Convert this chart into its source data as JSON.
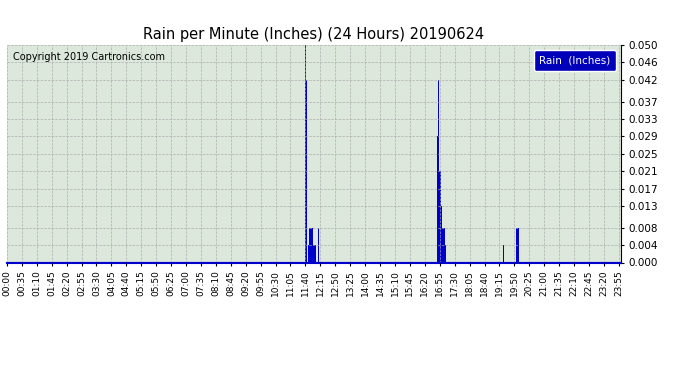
{
  "title": "Rain per Minute (Inches) (24 Hours) 20190624",
  "copyright": "Copyright 2019 Cartronics.com",
  "legend_label": "Rain  (Inches)",
  "legend_bg": "#0000bb",
  "legend_fg": "#ffffff",
  "bar_color": "#0000cc",
  "bg_color": "#ffffff",
  "plot_bg": "#dce8dc",
  "grid_color": "#aaaaaa",
  "axis_line_color": "#0000cc",
  "ylim": [
    0.0,
    0.05
  ],
  "yticks": [
    0.0,
    0.004,
    0.008,
    0.013,
    0.017,
    0.021,
    0.025,
    0.029,
    0.033,
    0.037,
    0.042,
    0.046,
    0.05
  ],
  "total_minutes": 1440,
  "rain_events": [
    {
      "minute": 700,
      "value": 0.05
    },
    {
      "minute": 703,
      "value": 0.042
    },
    {
      "minute": 706,
      "value": 0.008
    },
    {
      "minute": 707,
      "value": 0.004
    },
    {
      "minute": 708,
      "value": 0.008
    },
    {
      "minute": 709,
      "value": 0.004
    },
    {
      "minute": 710,
      "value": 0.008
    },
    {
      "minute": 711,
      "value": 0.004
    },
    {
      "minute": 712,
      "value": 0.008
    },
    {
      "minute": 713,
      "value": 0.004
    },
    {
      "minute": 714,
      "value": 0.008
    },
    {
      "minute": 715,
      "value": 0.004
    },
    {
      "minute": 716,
      "value": 0.008
    },
    {
      "minute": 717,
      "value": 0.008
    },
    {
      "minute": 718,
      "value": 0.004
    },
    {
      "minute": 719,
      "value": 0.004
    },
    {
      "minute": 720,
      "value": 0.008
    },
    {
      "minute": 721,
      "value": 0.004
    },
    {
      "minute": 722,
      "value": 0.004
    },
    {
      "minute": 723,
      "value": 0.008
    },
    {
      "minute": 724,
      "value": 0.004
    },
    {
      "minute": 725,
      "value": 0.004
    },
    {
      "minute": 730,
      "value": 0.008
    },
    {
      "minute": 731,
      "value": 0.008
    },
    {
      "minute": 732,
      "value": 0.008
    },
    {
      "minute": 1010,
      "value": 0.029
    },
    {
      "minute": 1012,
      "value": 0.042
    },
    {
      "minute": 1014,
      "value": 0.021
    },
    {
      "minute": 1015,
      "value": 0.021
    },
    {
      "minute": 1016,
      "value": 0.017
    },
    {
      "minute": 1017,
      "value": 0.021
    },
    {
      "minute": 1018,
      "value": 0.013
    },
    {
      "minute": 1019,
      "value": 0.013
    },
    {
      "minute": 1020,
      "value": 0.013
    },
    {
      "minute": 1021,
      "value": 0.008
    },
    {
      "minute": 1022,
      "value": 0.008
    },
    {
      "minute": 1023,
      "value": 0.013
    },
    {
      "minute": 1024,
      "value": 0.008
    },
    {
      "minute": 1025,
      "value": 0.013
    },
    {
      "minute": 1026,
      "value": 0.008
    },
    {
      "minute": 1027,
      "value": 0.004
    },
    {
      "minute": 1028,
      "value": 0.004
    },
    {
      "minute": 1029,
      "value": 0.004
    },
    {
      "minute": 1030,
      "value": 0.004
    },
    {
      "minute": 1163,
      "value": 0.008
    },
    {
      "minute": 1165,
      "value": 0.004
    },
    {
      "minute": 1195,
      "value": 0.008
    },
    {
      "minute": 1197,
      "value": 0.008
    },
    {
      "minute": 1198,
      "value": 0.008
    },
    {
      "minute": 1199,
      "value": 0.004
    },
    {
      "minute": 1200,
      "value": 0.008
    },
    {
      "minute": 1201,
      "value": 0.004
    }
  ],
  "xtick_labels": [
    "00:00",
    "00:35",
    "01:10",
    "01:45",
    "02:20",
    "02:55",
    "03:30",
    "04:05",
    "04:40",
    "05:15",
    "05:50",
    "06:25",
    "07:00",
    "07:35",
    "08:10",
    "08:45",
    "09:20",
    "09:55",
    "10:30",
    "11:05",
    "11:40",
    "12:15",
    "12:50",
    "13:25",
    "14:00",
    "14:35",
    "15:10",
    "15:45",
    "16:20",
    "16:55",
    "17:30",
    "18:05",
    "18:40",
    "19:15",
    "19:50",
    "20:25",
    "21:00",
    "21:35",
    "22:10",
    "22:45",
    "23:20",
    "23:55"
  ]
}
